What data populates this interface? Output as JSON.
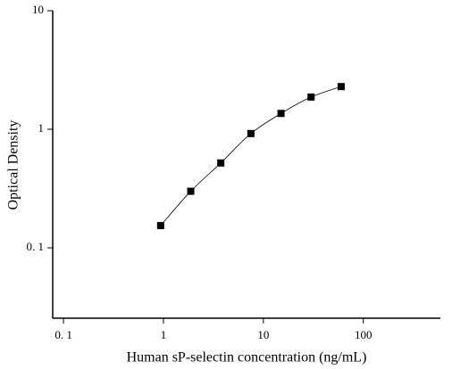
{
  "chart_data": {
    "type": "scatter",
    "xlabel": "Human sP-selectin concentration (ng/mL)",
    "ylabel": "Optical Density",
    "x": [
      0.9375,
      1.875,
      3.75,
      7.5,
      15,
      30,
      60
    ],
    "series": [
      {
        "color": "#000000",
        "values": [
          0.154,
          0.3,
          0.52,
          0.92,
          1.36,
          1.87,
          2.29
        ]
      }
    ],
    "xscale": "log",
    "yscale": "log",
    "xlim": [
      0.078,
      590
    ],
    "ylim": [
      0.0255,
      10
    ],
    "xticks": [
      {
        "value": 0.1,
        "label": "0. 1"
      },
      1,
      10,
      100
    ],
    "yticks": [
      {
        "value": 0.1,
        "label": "0. 1"
      },
      1,
      10
    ],
    "fit_line": true
  }
}
